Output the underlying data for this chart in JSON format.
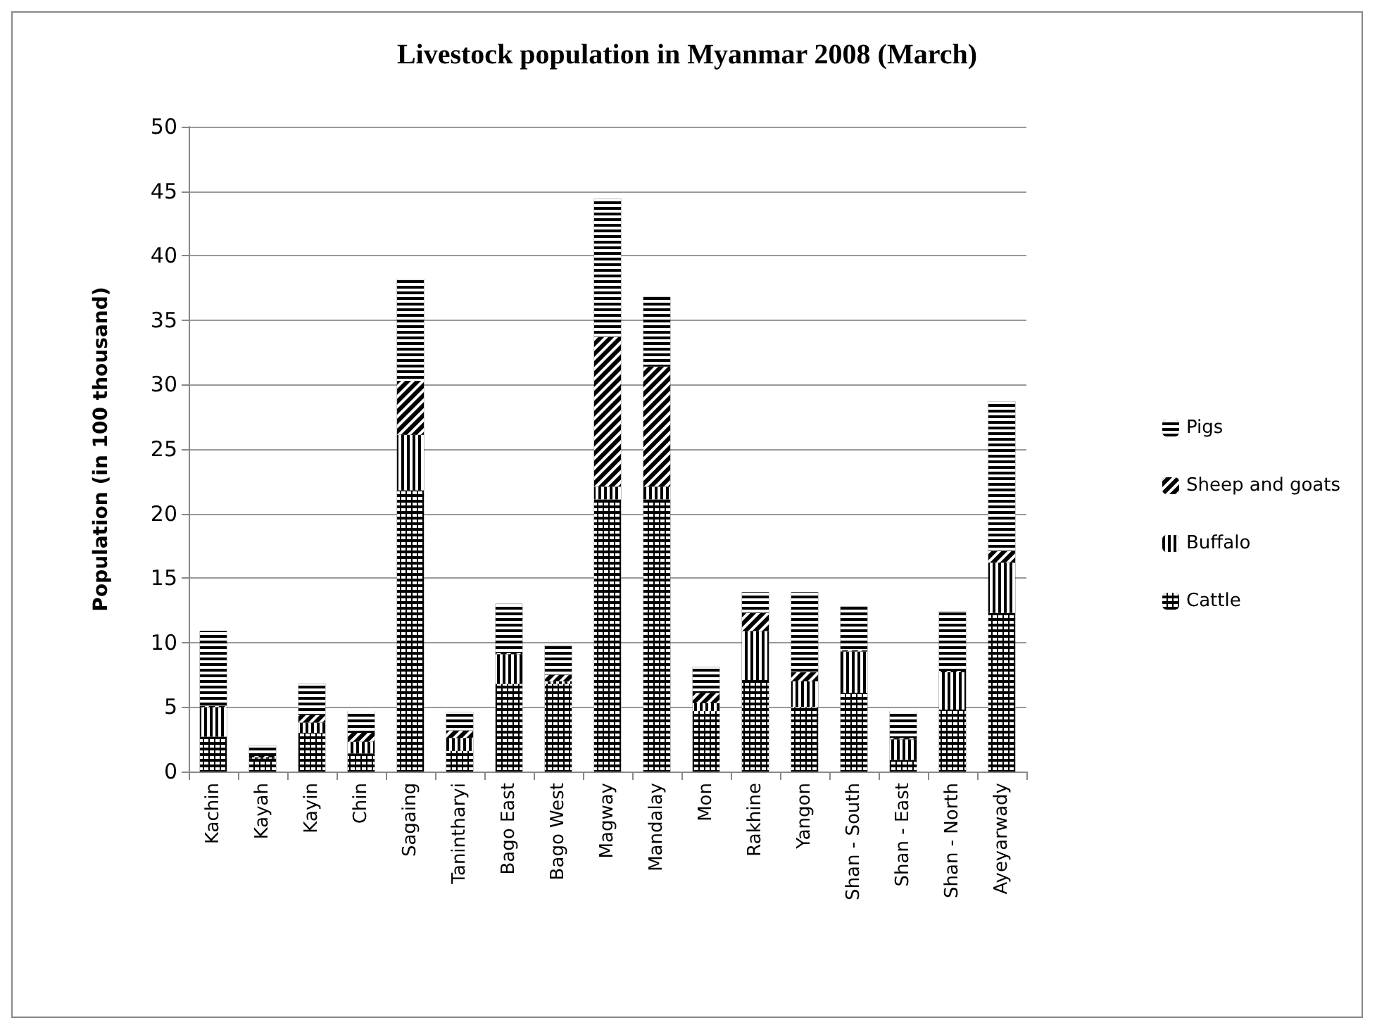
{
  "chart_data": {
    "type": "bar",
    "title": "Livestock population in Myanmar 2008 (March)",
    "ylabel": "Population (in 100 thousand)",
    "stacked": true,
    "grid": "y",
    "legend": "right",
    "categories": [
      "Kachin",
      "Kayah",
      "Kayin",
      "Chin",
      "Sagaing",
      "Tanintharyi",
      "Bago East",
      "Bago West",
      "Magway",
      "Mandalay",
      "Mon",
      "Rakhine",
      "Yangon",
      "Shan - South",
      "Shan - East",
      "Shan - North",
      "Ayeyarwady"
    ],
    "ylim": [
      0,
      50
    ],
    "yticks": [
      0,
      5,
      10,
      15,
      20,
      25,
      30,
      35,
      40,
      45,
      50
    ],
    "series": [
      {
        "name": "Cattle",
        "color": "#000000",
        "values": [
          2.7,
          1.0,
          3.0,
          1.4,
          21.8,
          1.6,
          6.8,
          6.8,
          21.1,
          21.1,
          4.7,
          7.1,
          5.0,
          6.1,
          0.9,
          4.8,
          12.3
        ]
      },
      {
        "name": "Buffalo",
        "color": "#000000",
        "values": [
          2.3,
          0.1,
          0.8,
          0.9,
          4.3,
          1.0,
          2.3,
          0.2,
          1.0,
          1.0,
          0.6,
          3.8,
          2.0,
          3.2,
          1.6,
          2.9,
          3.9
        ]
      },
      {
        "name": "Sheep and goats",
        "color": "#000000",
        "values": [
          0.1,
          0.1,
          0.6,
          0.7,
          4.2,
          0.6,
          0.1,
          0.5,
          11.6,
          9.3,
          0.8,
          1.4,
          0.7,
          0.1,
          0.1,
          0.1,
          0.9
        ]
      },
      {
        "name": "Pigs",
        "color": "#000000",
        "values": [
          5.8,
          0.8,
          2.4,
          1.7,
          7.9,
          1.4,
          3.8,
          2.3,
          10.7,
          5.4,
          2.0,
          1.6,
          6.2,
          3.4,
          2.1,
          4.6,
          11.6
        ]
      }
    ]
  }
}
